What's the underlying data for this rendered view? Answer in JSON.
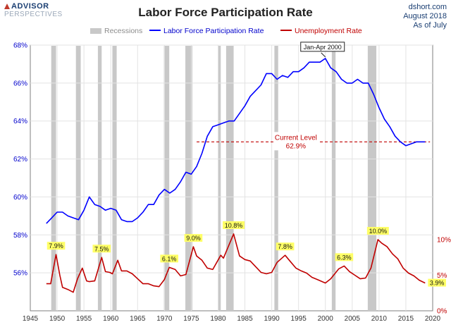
{
  "header": {
    "logo_line1": "ADVISOR",
    "logo_line2": "PERSPECTIVES",
    "title": "Labor Force Participation Rate",
    "source_line1": "dshort.com",
    "source_line2": "August 2018",
    "source_line3": "As of July"
  },
  "chart_data": {
    "type": "line",
    "title": "Labor Force Participation Rate",
    "legend": [
      "Recessions",
      "Labor Force Participation Rate",
      "Unemployment Rate"
    ],
    "legend_placement": "top",
    "grid": true,
    "x_ticks": [
      1945,
      1950,
      1955,
      1960,
      1965,
      1970,
      1975,
      1980,
      1985,
      1990,
      1995,
      2000,
      2005,
      2010,
      2015,
      2020
    ],
    "xlim": [
      1945,
      2020
    ],
    "left_axis": {
      "ticks": [
        "56%",
        "58%",
        "60%",
        "62%",
        "64%",
        "66%",
        "68%"
      ],
      "ylim": [
        54,
        68
      ]
    },
    "right_axis": {
      "ticks": [
        "0%",
        "5%",
        "10%"
      ],
      "ylim": [
        0,
        10
      ]
    },
    "recessions": [
      [
        1948.9,
        1949.8
      ],
      [
        1953.5,
        1954.4
      ],
      [
        1957.6,
        1958.3
      ],
      [
        1960.3,
        1961.1
      ],
      [
        1969.9,
        1970.9
      ],
      [
        1973.9,
        1975.2
      ],
      [
        1980.0,
        1980.5
      ],
      [
        1981.5,
        1982.9
      ],
      [
        1990.5,
        1991.2
      ],
      [
        2001.2,
        2001.9
      ],
      [
        2007.9,
        2009.5
      ]
    ],
    "series": [
      {
        "name": "Labor Force Participation Rate",
        "color": "#0000ff",
        "axis": "left",
        "points": [
          [
            1948.0,
            58.6
          ],
          [
            1949.0,
            58.9
          ],
          [
            1950.0,
            59.2
          ],
          [
            1951.0,
            59.2
          ],
          [
            1952.0,
            59.0
          ],
          [
            1953.0,
            58.9
          ],
          [
            1954.0,
            58.8
          ],
          [
            1955.0,
            59.3
          ],
          [
            1956.0,
            60.0
          ],
          [
            1957.0,
            59.6
          ],
          [
            1958.0,
            59.5
          ],
          [
            1959.0,
            59.3
          ],
          [
            1960.0,
            59.4
          ],
          [
            1961.0,
            59.3
          ],
          [
            1962.0,
            58.8
          ],
          [
            1963.0,
            58.7
          ],
          [
            1964.0,
            58.7
          ],
          [
            1965.0,
            58.9
          ],
          [
            1966.0,
            59.2
          ],
          [
            1967.0,
            59.6
          ],
          [
            1968.0,
            59.6
          ],
          [
            1969.0,
            60.1
          ],
          [
            1970.0,
            60.4
          ],
          [
            1971.0,
            60.2
          ],
          [
            1972.0,
            60.4
          ],
          [
            1973.0,
            60.8
          ],
          [
            1974.0,
            61.3
          ],
          [
            1975.0,
            61.2
          ],
          [
            1976.0,
            61.6
          ],
          [
            1977.0,
            62.3
          ],
          [
            1978.0,
            63.2
          ],
          [
            1979.0,
            63.7
          ],
          [
            1980.0,
            63.8
          ],
          [
            1981.0,
            63.9
          ],
          [
            1982.0,
            64.0
          ],
          [
            1983.0,
            64.0
          ],
          [
            1984.0,
            64.4
          ],
          [
            1985.0,
            64.8
          ],
          [
            1986.0,
            65.3
          ],
          [
            1987.0,
            65.6
          ],
          [
            1988.0,
            65.9
          ],
          [
            1989.0,
            66.5
          ],
          [
            1990.0,
            66.5
          ],
          [
            1991.0,
            66.2
          ],
          [
            1992.0,
            66.4
          ],
          [
            1993.0,
            66.3
          ],
          [
            1994.0,
            66.6
          ],
          [
            1995.0,
            66.6
          ],
          [
            1996.0,
            66.8
          ],
          [
            1997.0,
            67.1
          ],
          [
            1998.0,
            67.1
          ],
          [
            1999.0,
            67.1
          ],
          [
            2000.0,
            67.3
          ],
          [
            2001.0,
            66.8
          ],
          [
            2002.0,
            66.6
          ],
          [
            2003.0,
            66.2
          ],
          [
            2004.0,
            66.0
          ],
          [
            2005.0,
            66.0
          ],
          [
            2006.0,
            66.2
          ],
          [
            2007.0,
            66.0
          ],
          [
            2008.0,
            66.0
          ],
          [
            2009.0,
            65.4
          ],
          [
            2010.0,
            64.7
          ],
          [
            2011.0,
            64.1
          ],
          [
            2012.0,
            63.7
          ],
          [
            2013.0,
            63.2
          ],
          [
            2014.0,
            62.9
          ],
          [
            2015.0,
            62.7
          ],
          [
            2016.0,
            62.8
          ],
          [
            2017.0,
            62.9
          ],
          [
            2018.6,
            62.9
          ]
        ]
      },
      {
        "name": "Unemployment Rate",
        "color": "#c00000",
        "axis": "right",
        "points": [
          [
            1948.0,
            3.8
          ],
          [
            1948.8,
            3.8
          ],
          [
            1949.8,
            7.9
          ],
          [
            1950.5,
            5.0
          ],
          [
            1951.0,
            3.3
          ],
          [
            1952.0,
            3.0
          ],
          [
            1953.0,
            2.6
          ],
          [
            1953.8,
            4.5
          ],
          [
            1954.7,
            6.0
          ],
          [
            1955.5,
            4.2
          ],
          [
            1956.0,
            4.1
          ],
          [
            1957.0,
            4.2
          ],
          [
            1958.3,
            7.5
          ],
          [
            1959.0,
            5.5
          ],
          [
            1959.8,
            5.4
          ],
          [
            1960.3,
            5.2
          ],
          [
            1961.3,
            7.1
          ],
          [
            1962.0,
            5.6
          ],
          [
            1963.0,
            5.6
          ],
          [
            1964.0,
            5.2
          ],
          [
            1965.0,
            4.5
          ],
          [
            1966.0,
            3.8
          ],
          [
            1967.0,
            3.8
          ],
          [
            1968.0,
            3.5
          ],
          [
            1969.0,
            3.4
          ],
          [
            1970.0,
            4.4
          ],
          [
            1970.9,
            6.1
          ],
          [
            1972.0,
            5.8
          ],
          [
            1973.0,
            4.9
          ],
          [
            1974.0,
            5.1
          ],
          [
            1975.4,
            9.0
          ],
          [
            1976.0,
            7.7
          ],
          [
            1977.0,
            7.1
          ],
          [
            1978.0,
            6.0
          ],
          [
            1979.0,
            5.8
          ],
          [
            1980.5,
            7.8
          ],
          [
            1981.0,
            7.4
          ],
          [
            1982.9,
            10.8
          ],
          [
            1984.0,
            7.7
          ],
          [
            1985.0,
            7.2
          ],
          [
            1986.0,
            7.0
          ],
          [
            1987.0,
            6.2
          ],
          [
            1988.0,
            5.4
          ],
          [
            1989.0,
            5.2
          ],
          [
            1990.0,
            5.4
          ],
          [
            1991.0,
            6.8
          ],
          [
            1992.5,
            7.8
          ],
          [
            1993.5,
            6.9
          ],
          [
            1994.5,
            6.0
          ],
          [
            1995.5,
            5.6
          ],
          [
            1996.5,
            5.3
          ],
          [
            1997.5,
            4.7
          ],
          [
            1998.5,
            4.4
          ],
          [
            2000.0,
            3.9
          ],
          [
            2001.0,
            4.5
          ],
          [
            2002.5,
            5.9
          ],
          [
            2003.5,
            6.3
          ],
          [
            2004.5,
            5.5
          ],
          [
            2005.5,
            5.0
          ],
          [
            2006.5,
            4.5
          ],
          [
            2007.5,
            4.6
          ],
          [
            2008.5,
            6.0
          ],
          [
            2009.8,
            10.0
          ],
          [
            2010.5,
            9.5
          ],
          [
            2011.5,
            9.0
          ],
          [
            2012.5,
            8.0
          ],
          [
            2013.5,
            7.3
          ],
          [
            2014.5,
            6.0
          ],
          [
            2015.5,
            5.3
          ],
          [
            2016.5,
            4.9
          ],
          [
            2017.5,
            4.3
          ],
          [
            2018.6,
            3.9
          ]
        ]
      }
    ],
    "reference_line": {
      "value": 62.9,
      "axis": "left",
      "from_x": 1976.0,
      "to_x": 2019.5,
      "label_line1": "Current Level",
      "label_line2": "62.9%",
      "color": "#c00000"
    },
    "annotations": {
      "peak_callout": {
        "text": "Jan-Apr 2000",
        "x": 2000.0,
        "y": 67.3
      },
      "ur_peaks": [
        {
          "text": "7.9%",
          "x": 1949.8,
          "y": 7.9
        },
        {
          "text": "7.5%",
          "x": 1958.3,
          "y": 7.5
        },
        {
          "text": "6.1%",
          "x": 1970.9,
          "y": 6.1
        },
        {
          "text": "9.0%",
          "x": 1975.4,
          "y": 9.0
        },
        {
          "text": "10.8%",
          "x": 1982.9,
          "y": 10.8
        },
        {
          "text": "7.8%",
          "x": 1992.5,
          "y": 7.8
        },
        {
          "text": "6.3%",
          "x": 2003.5,
          "y": 6.3
        },
        {
          "text": "10.0%",
          "x": 2009.8,
          "y": 10.0
        },
        {
          "text": "3.9%",
          "x": 2018.6,
          "y": 3.9
        }
      ]
    }
  }
}
